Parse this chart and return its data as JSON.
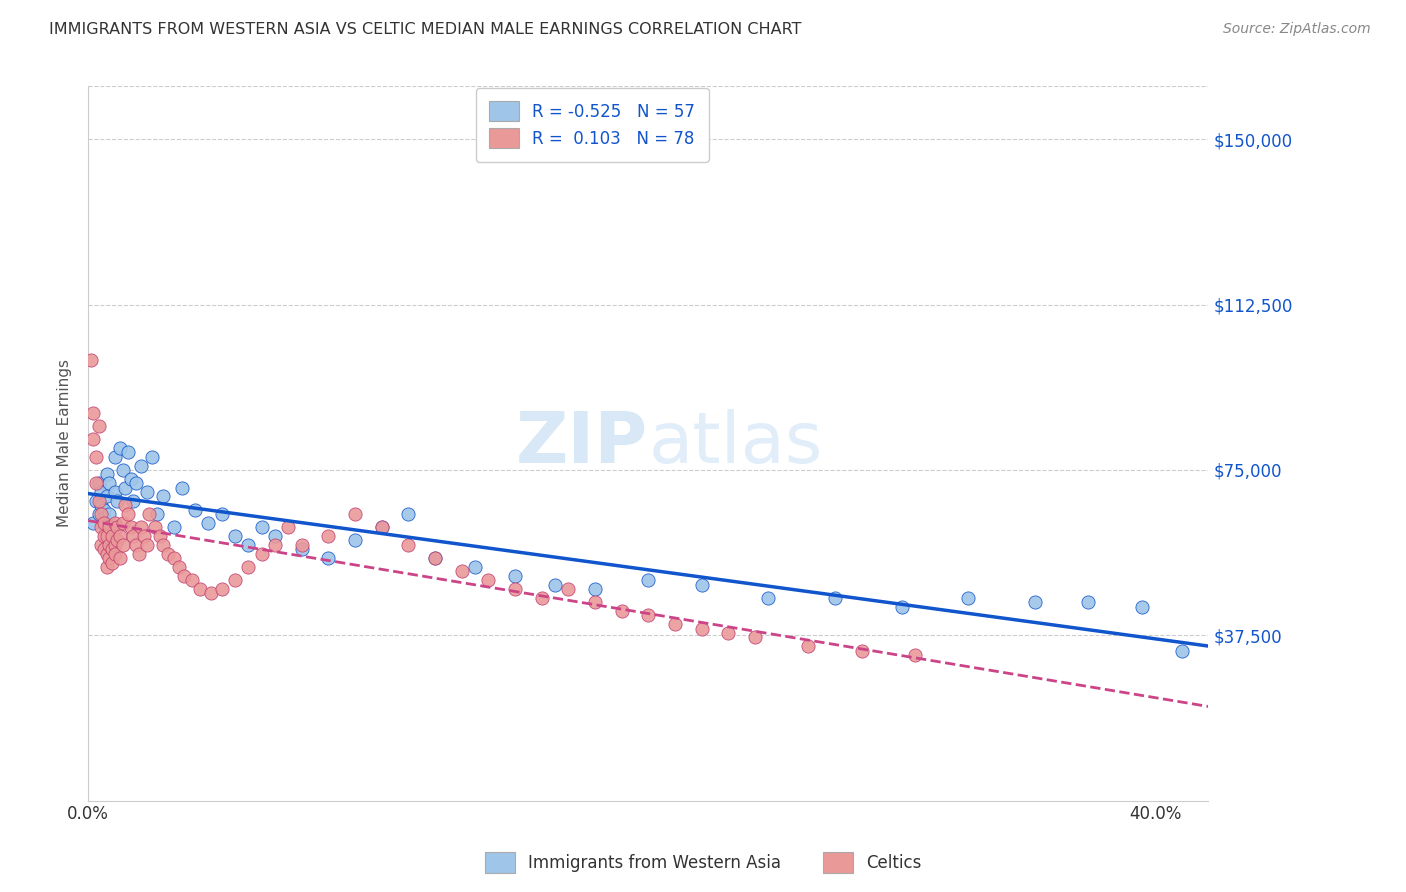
{
  "title": "IMMIGRANTS FROM WESTERN ASIA VS CELTIC MEDIAN MALE EARNINGS CORRELATION CHART",
  "source": "Source: ZipAtlas.com",
  "ylabel": "Median Male Earnings",
  "yticks": [
    0,
    37500,
    75000,
    112500,
    150000
  ],
  "ytick_labels": [
    "",
    "$37,500",
    "$75,000",
    "$112,500",
    "$150,000"
  ],
  "xlim": [
    0.0,
    0.42
  ],
  "ylim": [
    18000,
    162000
  ],
  "legend_blue_label": "Immigrants from Western Asia",
  "legend_pink_label": "Celtics",
  "blue_color": "#9fc5e8",
  "pink_color": "#ea9999",
  "blue_line_color": "#1155cc",
  "pink_line_color": "#cc4488",
  "watermark_zip": "ZIP",
  "watermark_atlas": "atlas",
  "background_color": "#ffffff",
  "blue_scatter_x": [
    0.002,
    0.003,
    0.004,
    0.004,
    0.005,
    0.005,
    0.006,
    0.006,
    0.007,
    0.007,
    0.008,
    0.008,
    0.009,
    0.01,
    0.01,
    0.011,
    0.012,
    0.013,
    0.014,
    0.015,
    0.016,
    0.017,
    0.018,
    0.02,
    0.022,
    0.024,
    0.026,
    0.028,
    0.032,
    0.035,
    0.04,
    0.045,
    0.05,
    0.055,
    0.06,
    0.065,
    0.07,
    0.08,
    0.09,
    0.1,
    0.11,
    0.12,
    0.13,
    0.145,
    0.16,
    0.175,
    0.19,
    0.21,
    0.23,
    0.255,
    0.28,
    0.305,
    0.33,
    0.355,
    0.375,
    0.395,
    0.41
  ],
  "blue_scatter_y": [
    63000,
    68000,
    72000,
    65000,
    70000,
    67000,
    66000,
    64000,
    74000,
    69000,
    72000,
    65000,
    62000,
    78000,
    70000,
    68000,
    80000,
    75000,
    71000,
    79000,
    73000,
    68000,
    72000,
    76000,
    70000,
    78000,
    65000,
    69000,
    62000,
    71000,
    66000,
    63000,
    65000,
    60000,
    58000,
    62000,
    60000,
    57000,
    55000,
    59000,
    62000,
    65000,
    55000,
    53000,
    51000,
    49000,
    48000,
    50000,
    49000,
    46000,
    46000,
    44000,
    46000,
    45000,
    45000,
    44000,
    34000
  ],
  "pink_scatter_x": [
    0.001,
    0.002,
    0.002,
    0.003,
    0.003,
    0.004,
    0.004,
    0.005,
    0.005,
    0.005,
    0.006,
    0.006,
    0.006,
    0.007,
    0.007,
    0.007,
    0.008,
    0.008,
    0.008,
    0.009,
    0.009,
    0.009,
    0.01,
    0.01,
    0.01,
    0.011,
    0.011,
    0.012,
    0.012,
    0.013,
    0.013,
    0.014,
    0.015,
    0.016,
    0.017,
    0.018,
    0.019,
    0.02,
    0.021,
    0.022,
    0.023,
    0.025,
    0.027,
    0.028,
    0.03,
    0.032,
    0.034,
    0.036,
    0.039,
    0.042,
    0.046,
    0.05,
    0.055,
    0.06,
    0.065,
    0.07,
    0.075,
    0.08,
    0.09,
    0.1,
    0.11,
    0.12,
    0.13,
    0.14,
    0.15,
    0.16,
    0.17,
    0.18,
    0.19,
    0.2,
    0.21,
    0.22,
    0.23,
    0.24,
    0.25,
    0.27,
    0.29,
    0.31
  ],
  "pink_scatter_y": [
    100000,
    88000,
    82000,
    78000,
    72000,
    85000,
    68000,
    62000,
    58000,
    65000,
    60000,
    57000,
    63000,
    60000,
    56000,
    53000,
    62000,
    58000,
    55000,
    60000,
    57000,
    54000,
    58000,
    63000,
    56000,
    62000,
    59000,
    60000,
    55000,
    63000,
    58000,
    67000,
    65000,
    62000,
    60000,
    58000,
    56000,
    62000,
    60000,
    58000,
    65000,
    62000,
    60000,
    58000,
    56000,
    55000,
    53000,
    51000,
    50000,
    48000,
    47000,
    48000,
    50000,
    53000,
    56000,
    58000,
    62000,
    58000,
    60000,
    65000,
    62000,
    58000,
    55000,
    52000,
    50000,
    48000,
    46000,
    48000,
    45000,
    43000,
    42000,
    40000,
    39000,
    38000,
    37000,
    35000,
    34000,
    33000
  ]
}
